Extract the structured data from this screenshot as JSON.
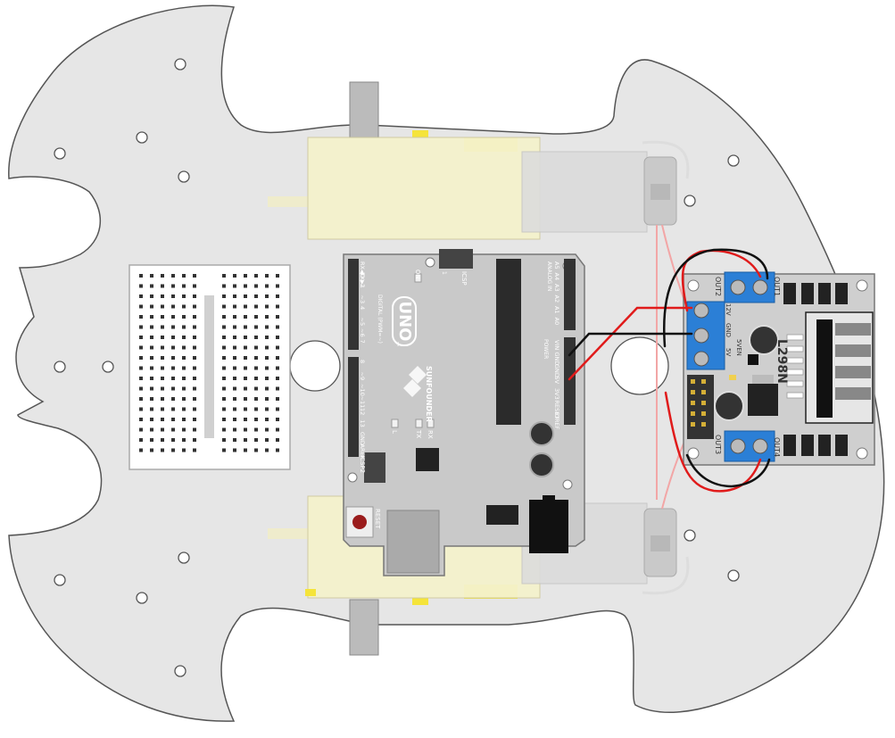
{
  "arduino": {
    "brand": "SUNFOUNDER",
    "model": "UNO",
    "model_mark": "™",
    "on_label": "ON",
    "icsp_label": "ICSP",
    "icsp_num": "1",
    "icsp2_label": "ICSP2",
    "tx_label": "TX",
    "rx_label": "RX",
    "l_label": "L",
    "reset_label": "RESET",
    "digital_label": "DIGITAL (PWM=~)",
    "analog_label": "ANALOG IN",
    "power_label": "POWER",
    "digital_pins_top": [
      "RX◀0",
      "TX▶1",
      "2",
      "~3",
      "4",
      "~5",
      "~6",
      "7"
    ],
    "digital_pins_bottom": [
      "8",
      "~9",
      "~10",
      "~11",
      "12",
      "13",
      "GND",
      "AREF"
    ],
    "analog_pins": [
      "A5",
      "A4",
      "A3",
      "A2",
      "A1",
      "A0"
    ],
    "power_pins": [
      "VIN",
      "GND",
      "GND",
      "5V",
      "3V3",
      "RESET",
      "IOREF"
    ]
  },
  "driver": {
    "name": "L298N",
    "out1": "OUT1",
    "out2": "OUT2",
    "out3": "OUT3",
    "out4": "OUT4",
    "v12": "12V",
    "gnd": "GND",
    "v5": "5V",
    "v5en": "5VEN"
  },
  "wire_colors": {
    "red": "#e01b1b",
    "black": "#111111",
    "motor_wire": "#f2a6a6"
  },
  "colors": {
    "chassis": "#e6e6e6",
    "arduino_board": "#c9c9c9",
    "driver_board": "#cfcfcf",
    "terminal": "#2b7fd6",
    "motor_bracket": "#f4f2cc",
    "yellow_tab": "#f5e43a"
  }
}
